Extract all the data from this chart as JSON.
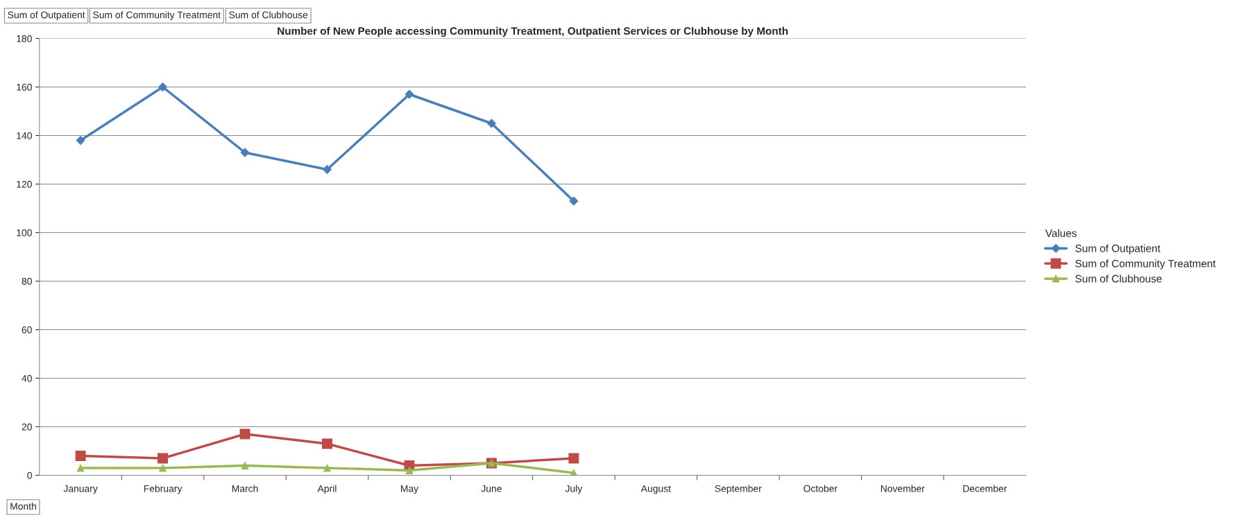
{
  "chart_data": {
    "type": "line",
    "title": "Number of New People accessing Community Treatment, Outpatient Services or Clubhouse by Month",
    "categories": [
      "January",
      "February",
      "March",
      "April",
      "May",
      "June",
      "July",
      "August",
      "September",
      "October",
      "November",
      "December"
    ],
    "series": [
      {
        "name": "Sum of Outpatient",
        "color": "#4a7ebb",
        "marker": "diamond",
        "values": [
          138,
          160,
          133,
          126,
          157,
          145,
          113,
          null,
          null,
          null,
          null,
          null
        ]
      },
      {
        "name": "Sum of Community Treatment",
        "color": "#be4b48",
        "marker": "square",
        "values": [
          8,
          7,
          17,
          13,
          4,
          5,
          7,
          null,
          null,
          null,
          null,
          null
        ]
      },
      {
        "name": "Sum of Clubhouse",
        "color": "#98b954",
        "marker": "triangle",
        "values": [
          3,
          3,
          4,
          3,
          2,
          5,
          1,
          null,
          null,
          null,
          null,
          null
        ]
      }
    ],
    "ylim": [
      0,
      180
    ],
    "yticks": [
      0,
      20,
      40,
      60,
      80,
      100,
      120,
      140,
      160,
      180
    ],
    "grid": "y",
    "legend": "right",
    "legend_title": "Values",
    "annotations": [
      "Sum of Outpatient",
      "Sum of Community Treatment",
      "Sum of Clubhouse",
      "Month"
    ]
  }
}
